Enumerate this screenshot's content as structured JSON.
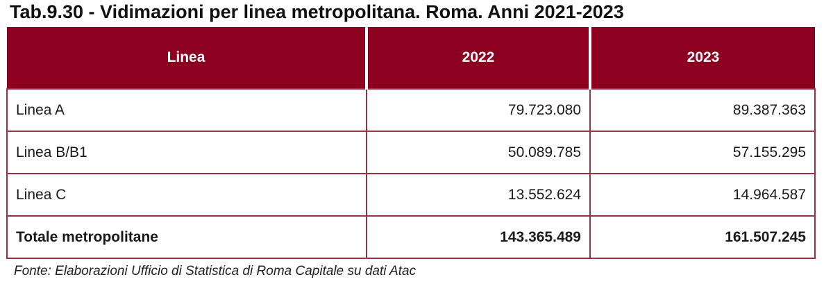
{
  "title": "Tab.9.30 - Vidimazioni per linea metropolitana. Roma. Anni 2021-2023",
  "table": {
    "headers": [
      "Linea",
      "2022",
      "2023"
    ],
    "rows": [
      [
        "Linea A",
        "79.723.080",
        "89.387.363"
      ],
      [
        "Linea B/B1",
        "50.089.785",
        "57.155.295"
      ],
      [
        "Linea C",
        "13.552.624",
        "14.964.587"
      ]
    ],
    "total": [
      "Totale metropolitane",
      "143.365.489",
      "161.507.245"
    ]
  },
  "source": "Fonte: Elaborazioni Ufficio di Statistica di Roma Capitale su dati Atac",
  "colors": {
    "header_background": "#8c0020",
    "header_text": "#ffffff",
    "cell_border": "#9a3040"
  }
}
